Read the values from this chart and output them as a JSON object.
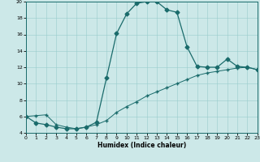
{
  "xlabel": "Humidex (Indice chaleur)",
  "xlim": [
    0,
    23
  ],
  "ylim": [
    4,
    20
  ],
  "yticks": [
    4,
    6,
    8,
    10,
    12,
    14,
    16,
    18,
    20
  ],
  "xticks": [
    0,
    1,
    2,
    3,
    4,
    5,
    6,
    7,
    8,
    9,
    10,
    11,
    12,
    13,
    14,
    15,
    16,
    17,
    18,
    19,
    20,
    21,
    22,
    23
  ],
  "bg_color": "#cce8e8",
  "line_color": "#1a6b6b",
  "series1_x": [
    0,
    1,
    2,
    3,
    4,
    5,
    6,
    7,
    8,
    9,
    10,
    11,
    12,
    13,
    14,
    15,
    16,
    17,
    18,
    19,
    20,
    21,
    22,
    23
  ],
  "series1_y": [
    6.0,
    5.2,
    5.0,
    4.7,
    4.5,
    4.5,
    4.7,
    5.3,
    10.7,
    16.1,
    18.5,
    19.8,
    20.0,
    20.0,
    19.0,
    18.7,
    14.5,
    12.1,
    12.0,
    12.0,
    13.0,
    12.1,
    12.0,
    11.7
  ],
  "series2_x": [
    0,
    1,
    2,
    3,
    4,
    5,
    6,
    7,
    8,
    9,
    10,
    11,
    12,
    13,
    14,
    15,
    16,
    17,
    18,
    19,
    20,
    21,
    22,
    23
  ],
  "series2_y": [
    6.0,
    6.1,
    6.2,
    5.0,
    4.7,
    4.5,
    4.7,
    5.0,
    5.5,
    6.5,
    7.2,
    7.8,
    8.5,
    9.0,
    9.5,
    10.0,
    10.5,
    11.0,
    11.3,
    11.5,
    11.7,
    11.9,
    12.0,
    11.7
  ]
}
